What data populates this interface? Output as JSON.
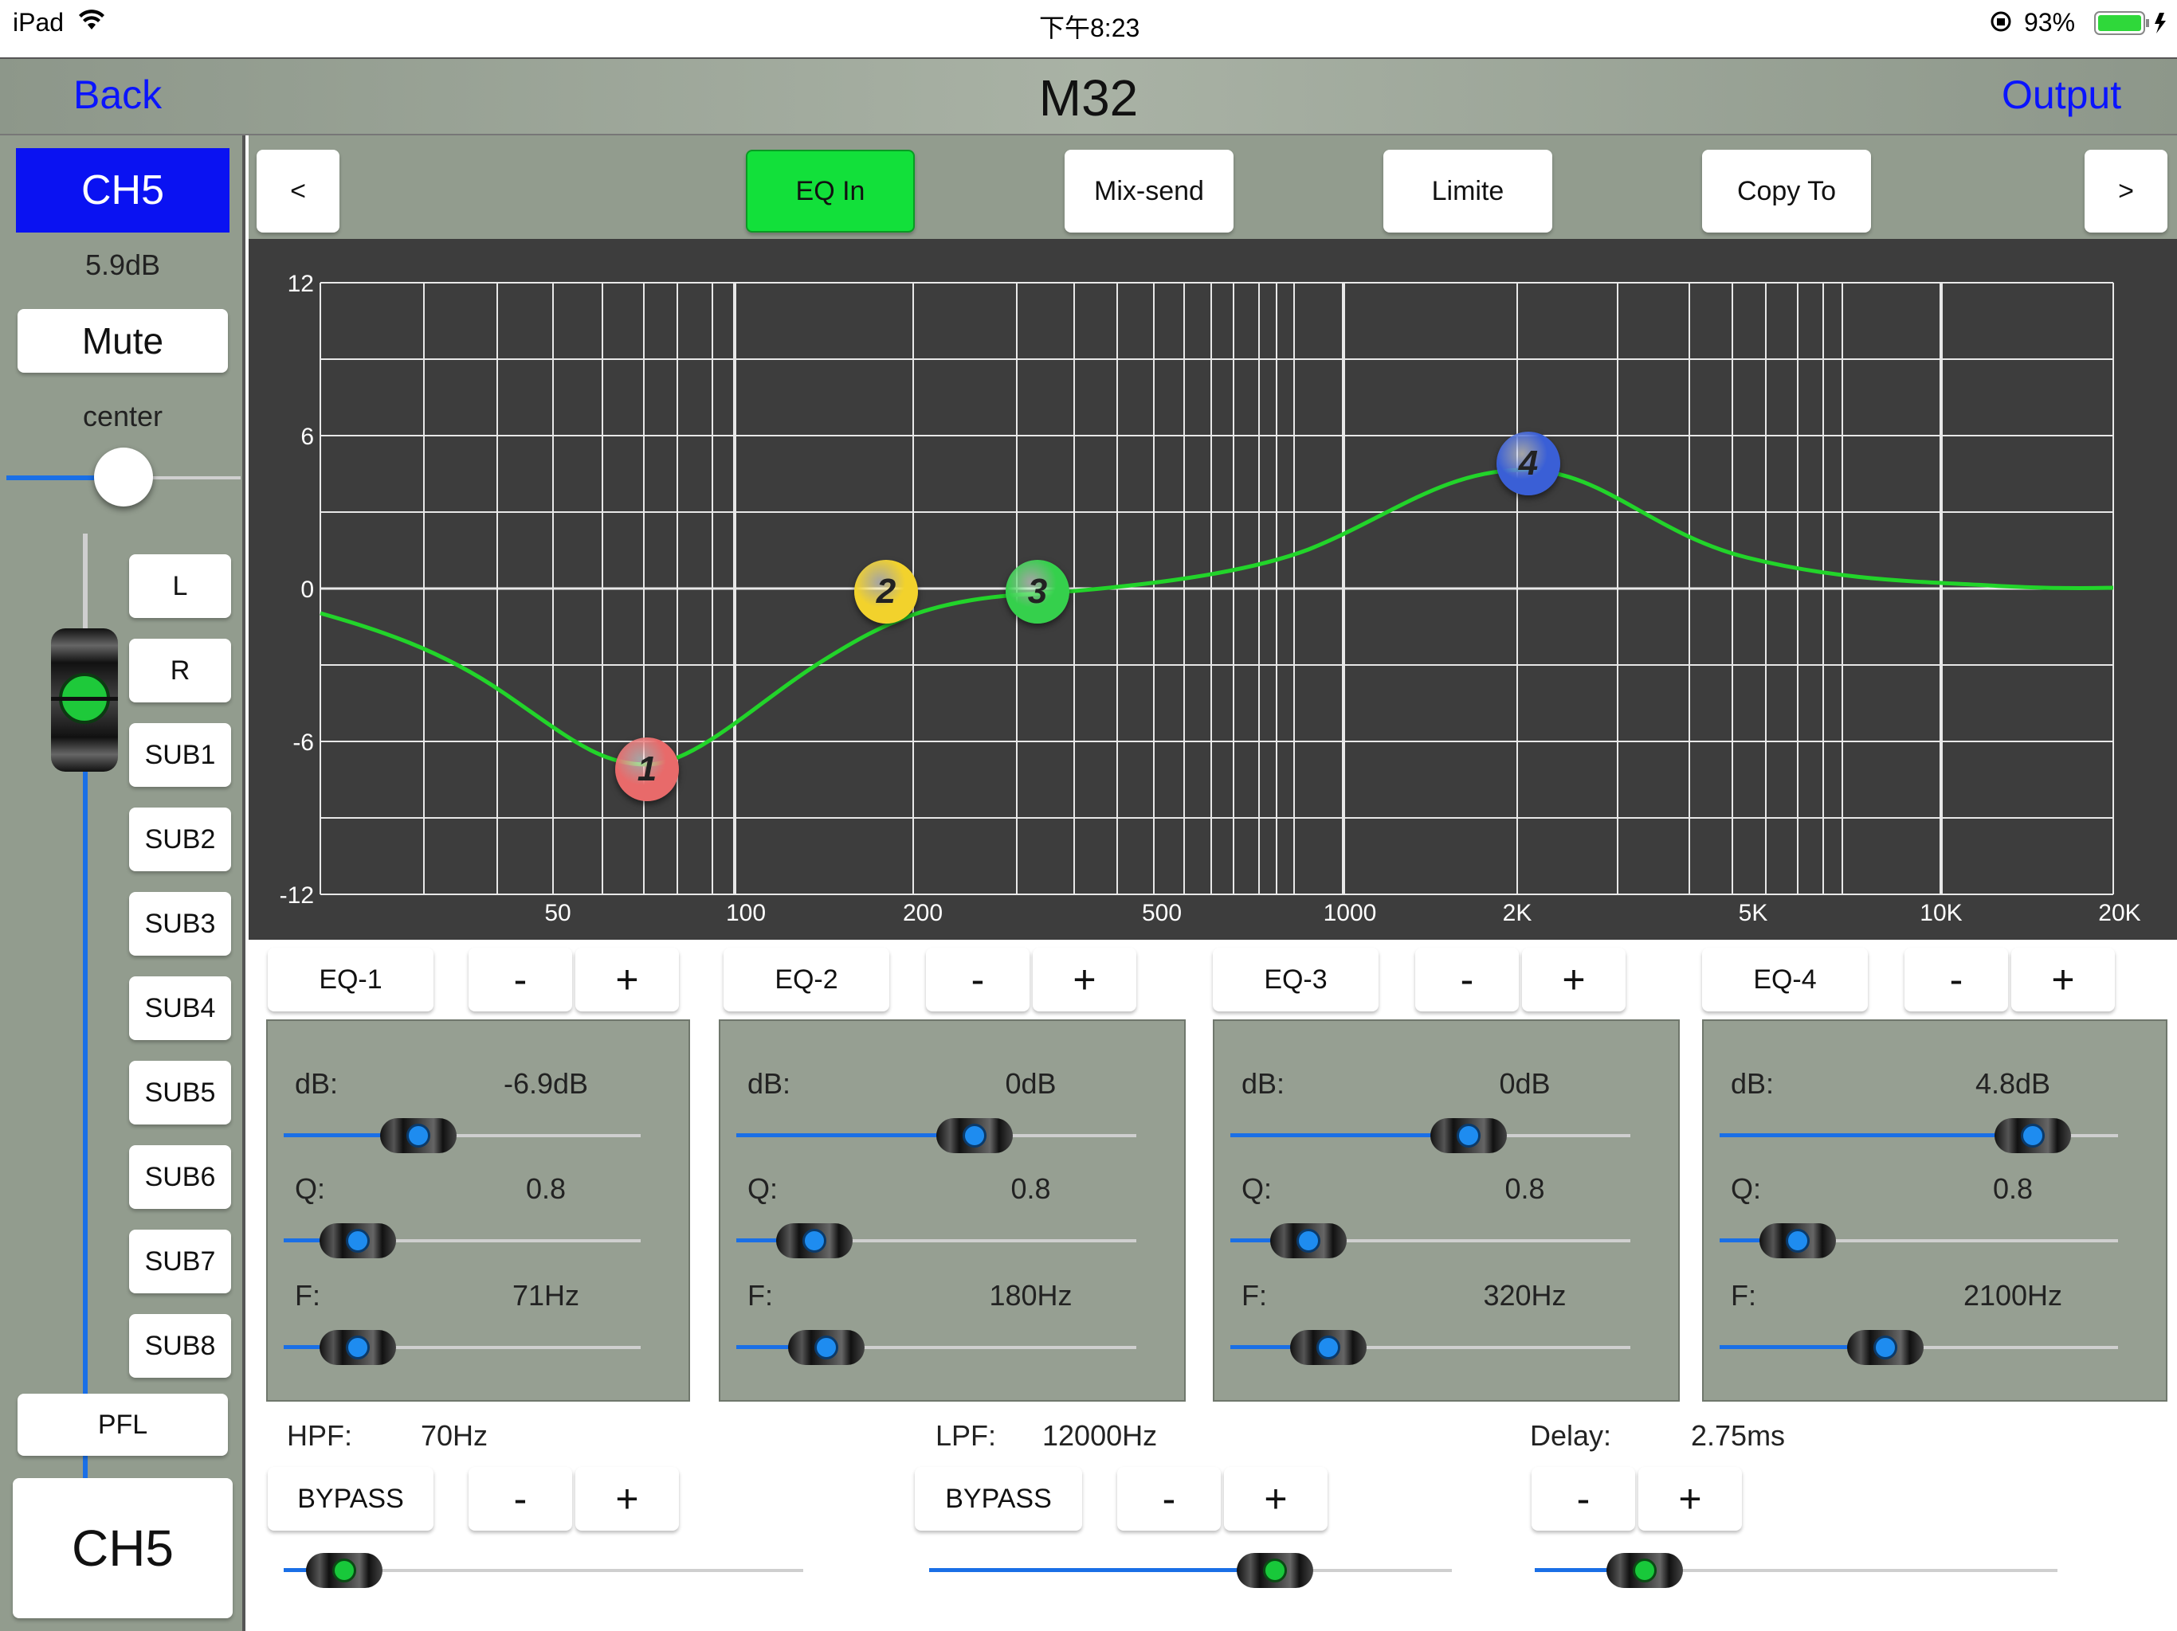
{
  "status": {
    "device": "iPad",
    "time": "下午8:23",
    "battery": "93%"
  },
  "nav": {
    "back": "Back",
    "title": "M32",
    "output": "Output"
  },
  "sidebar": {
    "channel": "CH5",
    "level": "5.9dB",
    "mute": "Mute",
    "pan_label": "center",
    "routes": [
      "L",
      "R",
      "SUB1",
      "SUB2",
      "SUB3",
      "SUB4",
      "SUB5",
      "SUB6",
      "SUB7",
      "SUB8"
    ],
    "pfl": "PFL",
    "channel_bottom": "CH5",
    "fader_level": 0.83,
    "pan_value": 0.5
  },
  "tabs": {
    "prev": "<",
    "eq_in": "EQ In",
    "mix_send": "Mix-send",
    "limite": "Limite",
    "copy_to": "Copy To",
    "next": ">"
  },
  "graph": {
    "y_ticks": [
      "12",
      "6",
      "0",
      "-6",
      "-12"
    ],
    "x_ticks": [
      "50",
      "100",
      "200",
      "500",
      "1000",
      "2K",
      "5K",
      "10K",
      "20K"
    ],
    "curve_color": "#22d42a",
    "nodes": [
      {
        "label": "1",
        "color": "#e86a6a"
      },
      {
        "label": "2",
        "color": "#f2d22c"
      },
      {
        "label": "3",
        "color": "#35d04c"
      },
      {
        "label": "4",
        "color": "#3a5fd6"
      }
    ]
  },
  "eq": [
    {
      "name": "EQ-1",
      "minus": "-",
      "plus": "+",
      "db_label": "dB:",
      "db": "-6.9dB",
      "q_label": "Q:",
      "q": "0.8",
      "f_label": "F:",
      "f": "71Hz",
      "db_pos": 0.27,
      "q_pos": 0.1,
      "f_pos": 0.1
    },
    {
      "name": "EQ-2",
      "minus": "-",
      "plus": "+",
      "db_label": "dB:",
      "db": "0dB",
      "q_label": "Q:",
      "q": "0.8",
      "f_label": "F:",
      "f": "180Hz",
      "db_pos": 0.5,
      "q_pos": 0.1,
      "f_pos": 0.13
    },
    {
      "name": "EQ-3",
      "minus": "-",
      "plus": "+",
      "db_label": "dB:",
      "db": "0dB",
      "q_label": "Q:",
      "q": "0.8",
      "f_label": "F:",
      "f": "320Hz",
      "db_pos": 0.5,
      "q_pos": 0.1,
      "f_pos": 0.15
    },
    {
      "name": "EQ-4",
      "minus": "-",
      "plus": "+",
      "db_label": "dB:",
      "db": "4.8dB",
      "q_label": "Q:",
      "q": "0.8",
      "f_label": "F:",
      "f": "2100Hz",
      "db_pos": 0.69,
      "q_pos": 0.1,
      "f_pos": 0.32
    }
  ],
  "filters": {
    "hpf_label": "HPF:",
    "hpf": "70Hz",
    "lpf_label": "LPF:",
    "lpf": "12000Hz",
    "delay_label": "Delay:",
    "delay": "2.75ms",
    "bypass": "BYPASS",
    "minus": "-",
    "plus": "+",
    "hpf_pos": 0.05,
    "lpf_pos": 0.69,
    "delay_pos": 0.16
  }
}
